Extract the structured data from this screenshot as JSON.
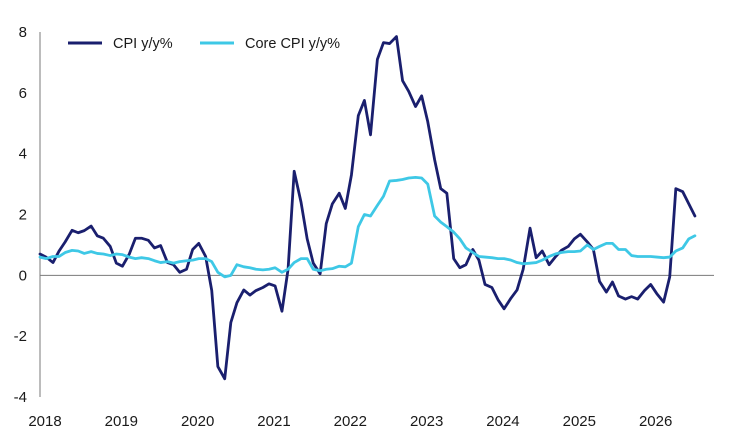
{
  "chart_data": {
    "type": "line",
    "title": "",
    "xlabel": "",
    "ylabel": "",
    "xlim": [
      2018.0,
      2026.83
    ],
    "ylim": [
      -4,
      8
    ],
    "yticks": [
      "8",
      "6",
      "4",
      "2",
      "0",
      "-2",
      "-4"
    ],
    "xticks": [
      "2018",
      "2019",
      "2020",
      "2021",
      "2022",
      "2023",
      "2024",
      "2025",
      "2026"
    ],
    "grid": false,
    "legend": "top-left",
    "series": [
      {
        "name": "CPI y/y%",
        "color": "#1a1f6e",
        "points": [
          [
            2018.0,
            0.7
          ],
          [
            2018.08,
            0.6
          ],
          [
            2018.17,
            0.42
          ],
          [
            2018.25,
            0.8
          ],
          [
            2018.33,
            1.1
          ],
          [
            2018.42,
            1.48
          ],
          [
            2018.5,
            1.4
          ],
          [
            2018.58,
            1.47
          ],
          [
            2018.67,
            1.62
          ],
          [
            2018.75,
            1.3
          ],
          [
            2018.83,
            1.22
          ],
          [
            2018.92,
            0.95
          ],
          [
            2019.0,
            0.4
          ],
          [
            2019.08,
            0.3
          ],
          [
            2019.17,
            0.7
          ],
          [
            2019.25,
            1.22
          ],
          [
            2019.33,
            1.22
          ],
          [
            2019.42,
            1.15
          ],
          [
            2019.5,
            0.9
          ],
          [
            2019.58,
            0.98
          ],
          [
            2019.67,
            0.42
          ],
          [
            2019.75,
            0.35
          ],
          [
            2019.83,
            0.1
          ],
          [
            2019.92,
            0.2
          ],
          [
            2020.0,
            0.85
          ],
          [
            2020.08,
            1.05
          ],
          [
            2020.17,
            0.62
          ],
          [
            2020.25,
            -0.5
          ],
          [
            2020.33,
            -3.0
          ],
          [
            2020.42,
            -3.4
          ],
          [
            2020.5,
            -1.55
          ],
          [
            2020.58,
            -0.9
          ],
          [
            2020.67,
            -0.48
          ],
          [
            2020.75,
            -0.65
          ],
          [
            2020.83,
            -0.5
          ],
          [
            2020.92,
            -0.4
          ],
          [
            2021.0,
            -0.28
          ],
          [
            2021.08,
            -0.35
          ],
          [
            2021.17,
            -1.18
          ],
          [
            2021.25,
            0.2
          ],
          [
            2021.33,
            3.42
          ],
          [
            2021.42,
            2.4
          ],
          [
            2021.5,
            1.2
          ],
          [
            2021.58,
            0.4
          ],
          [
            2021.67,
            0.05
          ],
          [
            2021.75,
            1.7
          ],
          [
            2021.83,
            2.35
          ],
          [
            2021.92,
            2.7
          ],
          [
            2022.0,
            2.2
          ],
          [
            2022.08,
            3.3
          ],
          [
            2022.17,
            5.25
          ],
          [
            2022.25,
            5.75
          ],
          [
            2022.33,
            4.62
          ],
          [
            2022.42,
            7.1
          ],
          [
            2022.5,
            7.65
          ],
          [
            2022.58,
            7.62
          ],
          [
            2022.67,
            7.85
          ],
          [
            2022.75,
            6.4
          ],
          [
            2022.83,
            6.05
          ],
          [
            2022.92,
            5.55
          ],
          [
            2023.0,
            5.9
          ],
          [
            2023.08,
            5.05
          ],
          [
            2023.17,
            3.8
          ],
          [
            2023.25,
            2.85
          ],
          [
            2023.33,
            2.7
          ],
          [
            2023.42,
            0.55
          ],
          [
            2023.5,
            0.25
          ],
          [
            2023.58,
            0.35
          ],
          [
            2023.67,
            0.85
          ],
          [
            2023.75,
            0.5
          ],
          [
            2023.83,
            -0.3
          ],
          [
            2023.92,
            -0.4
          ],
          [
            2024.0,
            -0.8
          ],
          [
            2024.08,
            -1.1
          ],
          [
            2024.17,
            -0.75
          ],
          [
            2024.25,
            -0.48
          ],
          [
            2024.33,
            0.2
          ],
          [
            2024.42,
            1.55
          ],
          [
            2024.5,
            0.58
          ],
          [
            2024.58,
            0.8
          ],
          [
            2024.67,
            0.35
          ],
          [
            2024.75,
            0.6
          ],
          [
            2024.83,
            0.82
          ],
          [
            2024.92,
            0.95
          ],
          [
            2025.0,
            1.2
          ],
          [
            2025.08,
            1.35
          ],
          [
            2025.17,
            1.1
          ],
          [
            2025.25,
            0.85
          ],
          [
            2025.33,
            -0.2
          ],
          [
            2025.42,
            -0.55
          ],
          [
            2025.5,
            -0.22
          ],
          [
            2025.58,
            -0.68
          ],
          [
            2025.67,
            -0.78
          ],
          [
            2025.75,
            -0.7
          ],
          [
            2025.83,
            -0.78
          ],
          [
            2025.92,
            -0.5
          ],
          [
            2026.0,
            -0.3
          ],
          [
            2026.08,
            -0.6
          ],
          [
            2026.17,
            -0.88
          ],
          [
            2026.25,
            -0.05
          ],
          [
            2026.33,
            2.85
          ],
          [
            2026.42,
            2.75
          ],
          [
            2026.5,
            2.35
          ],
          [
            2026.58,
            1.95
          ]
        ]
      },
      {
        "name": "Core CPI y/y%",
        "color": "#3ec8e6",
        "points": [
          [
            2018.0,
            0.6
          ],
          [
            2018.08,
            0.55
          ],
          [
            2018.17,
            0.62
          ],
          [
            2018.25,
            0.62
          ],
          [
            2018.33,
            0.75
          ],
          [
            2018.42,
            0.82
          ],
          [
            2018.5,
            0.8
          ],
          [
            2018.58,
            0.72
          ],
          [
            2018.67,
            0.78
          ],
          [
            2018.75,
            0.72
          ],
          [
            2018.83,
            0.7
          ],
          [
            2018.92,
            0.65
          ],
          [
            2019.0,
            0.7
          ],
          [
            2019.08,
            0.68
          ],
          [
            2019.17,
            0.6
          ],
          [
            2019.25,
            0.55
          ],
          [
            2019.33,
            0.58
          ],
          [
            2019.42,
            0.55
          ],
          [
            2019.5,
            0.48
          ],
          [
            2019.58,
            0.42
          ],
          [
            2019.67,
            0.45
          ],
          [
            2019.75,
            0.4
          ],
          [
            2019.83,
            0.45
          ],
          [
            2019.92,
            0.48
          ],
          [
            2020.0,
            0.5
          ],
          [
            2020.08,
            0.55
          ],
          [
            2020.17,
            0.55
          ],
          [
            2020.25,
            0.45
          ],
          [
            2020.33,
            0.1
          ],
          [
            2020.42,
            -0.05
          ],
          [
            2020.5,
            0.0
          ],
          [
            2020.58,
            0.35
          ],
          [
            2020.67,
            0.28
          ],
          [
            2020.75,
            0.25
          ],
          [
            2020.83,
            0.2
          ],
          [
            2020.92,
            0.18
          ],
          [
            2021.0,
            0.2
          ],
          [
            2021.08,
            0.25
          ],
          [
            2021.17,
            0.1
          ],
          [
            2021.25,
            0.2
          ],
          [
            2021.33,
            0.42
          ],
          [
            2021.42,
            0.55
          ],
          [
            2021.5,
            0.55
          ],
          [
            2021.58,
            0.2
          ],
          [
            2021.67,
            0.15
          ],
          [
            2021.75,
            0.2
          ],
          [
            2021.83,
            0.22
          ],
          [
            2021.92,
            0.3
          ],
          [
            2022.0,
            0.28
          ],
          [
            2022.08,
            0.4
          ],
          [
            2022.17,
            1.6
          ],
          [
            2022.25,
            2.0
          ],
          [
            2022.33,
            1.95
          ],
          [
            2022.42,
            2.3
          ],
          [
            2022.5,
            2.6
          ],
          [
            2022.58,
            3.1
          ],
          [
            2022.67,
            3.12
          ],
          [
            2022.75,
            3.15
          ],
          [
            2022.83,
            3.2
          ],
          [
            2022.92,
            3.22
          ],
          [
            2023.0,
            3.2
          ],
          [
            2023.08,
            3.0
          ],
          [
            2023.17,
            1.95
          ],
          [
            2023.25,
            1.75
          ],
          [
            2023.33,
            1.6
          ],
          [
            2023.42,
            1.42
          ],
          [
            2023.5,
            1.2
          ],
          [
            2023.58,
            0.9
          ],
          [
            2023.67,
            0.75
          ],
          [
            2023.75,
            0.62
          ],
          [
            2023.83,
            0.6
          ],
          [
            2023.92,
            0.58
          ],
          [
            2024.0,
            0.55
          ],
          [
            2024.08,
            0.55
          ],
          [
            2024.17,
            0.5
          ],
          [
            2024.25,
            0.42
          ],
          [
            2024.33,
            0.38
          ],
          [
            2024.42,
            0.4
          ],
          [
            2024.5,
            0.42
          ],
          [
            2024.58,
            0.5
          ],
          [
            2024.67,
            0.62
          ],
          [
            2024.75,
            0.7
          ],
          [
            2024.83,
            0.75
          ],
          [
            2024.92,
            0.78
          ],
          [
            2025.0,
            0.78
          ],
          [
            2025.08,
            0.8
          ],
          [
            2025.17,
            1.0
          ],
          [
            2025.25,
            0.85
          ],
          [
            2025.33,
            0.95
          ],
          [
            2025.42,
            1.05
          ],
          [
            2025.5,
            1.05
          ],
          [
            2025.58,
            0.85
          ],
          [
            2025.67,
            0.85
          ],
          [
            2025.75,
            0.65
          ],
          [
            2025.83,
            0.62
          ],
          [
            2025.92,
            0.62
          ],
          [
            2026.0,
            0.62
          ],
          [
            2026.08,
            0.6
          ],
          [
            2026.17,
            0.58
          ],
          [
            2026.25,
            0.6
          ],
          [
            2026.33,
            0.8
          ],
          [
            2026.42,
            0.9
          ],
          [
            2026.5,
            1.2
          ],
          [
            2026.58,
            1.3
          ]
        ]
      }
    ]
  }
}
